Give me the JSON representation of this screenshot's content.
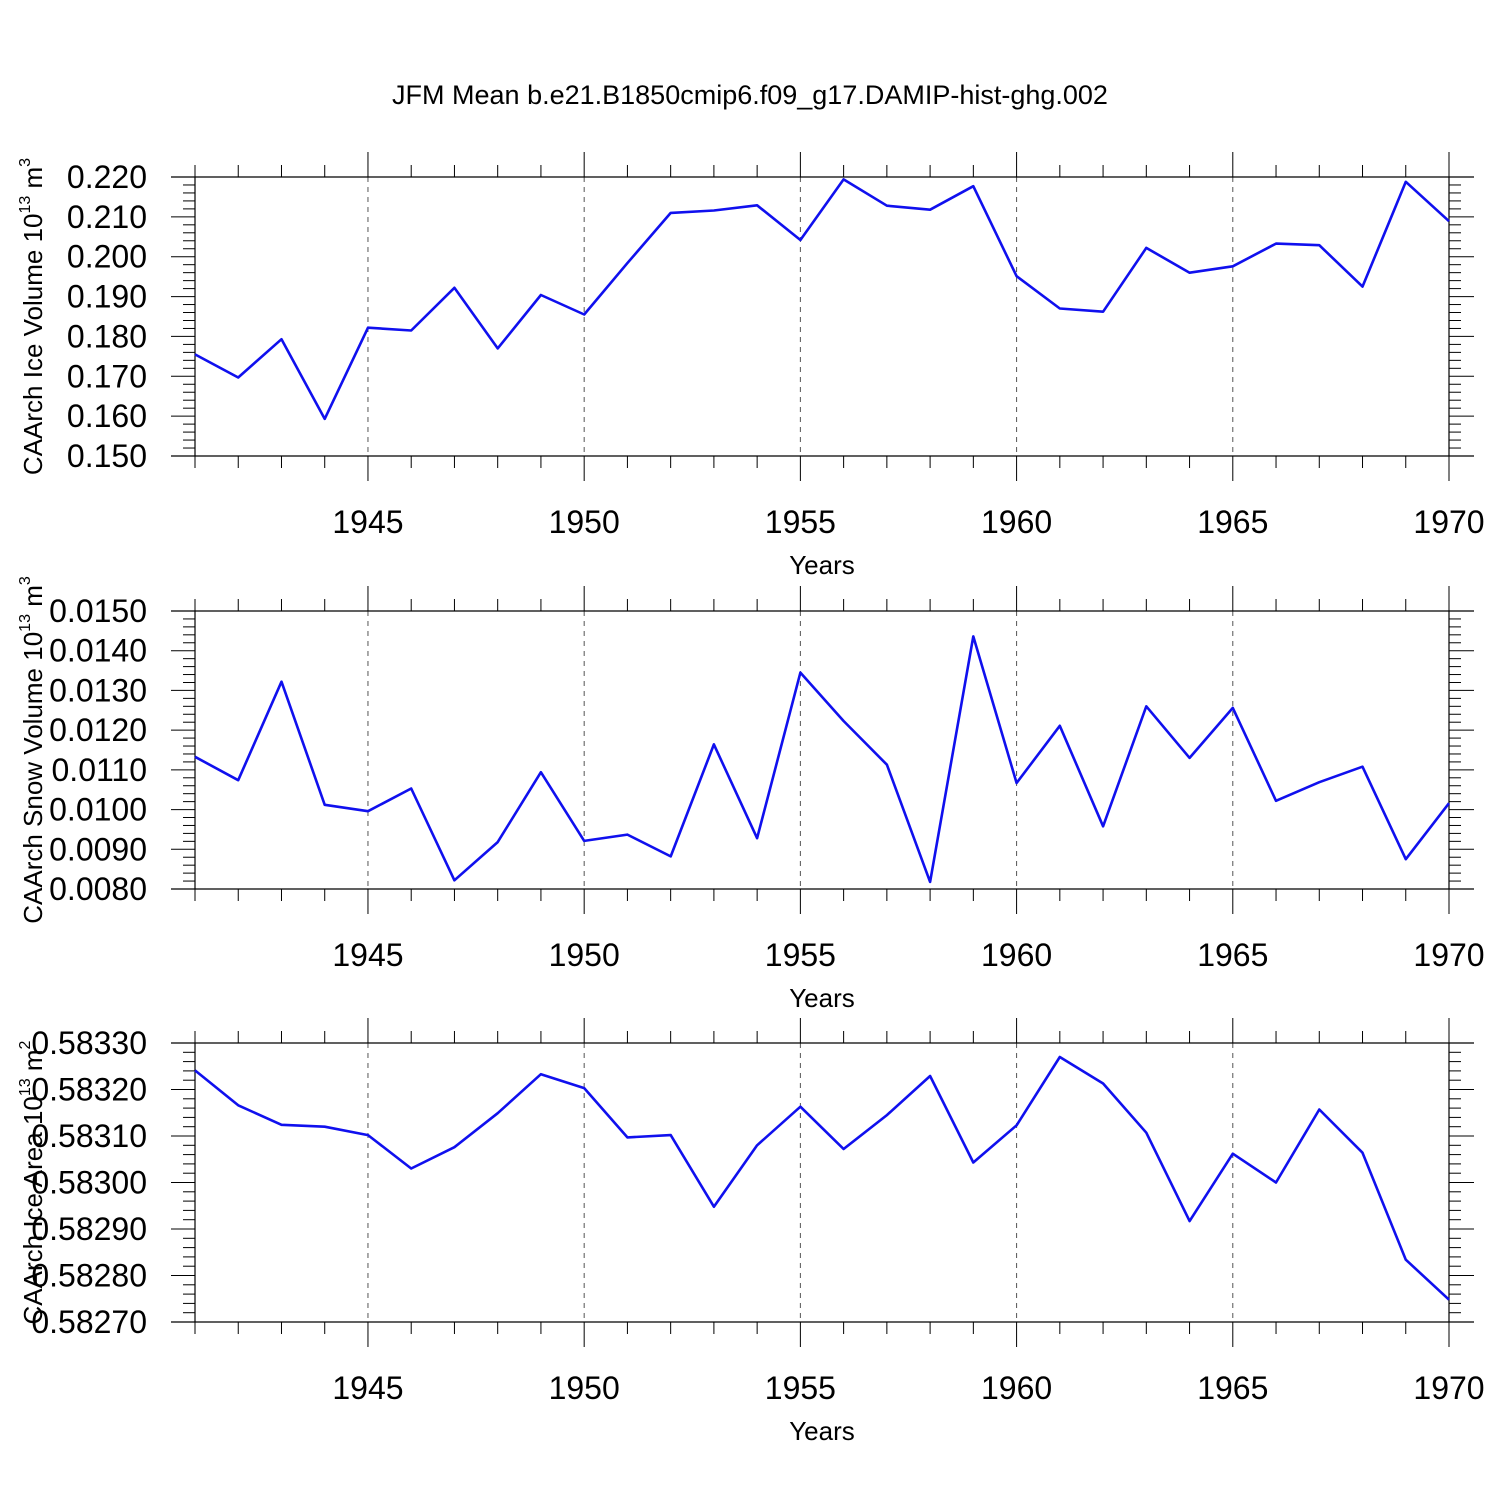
{
  "title": "JFM Mean b.e21.B1850cmip6.f09_g17.DAMIP-hist-ghg.002",
  "colors": {
    "line": "#1010ee",
    "axis": "#000000",
    "grid": "#555555"
  },
  "chart_data": [
    {
      "type": "line",
      "xlabel": "Years",
      "ylabel": "CAArch Ice Volume 10",
      "ylabel_exp": "13",
      "ylabel_unit": " m",
      "ylabel_unit_exp": "3",
      "xlim": [
        1941,
        1970
      ],
      "ylim": [
        0.15,
        0.22
      ],
      "x_ticks": [
        1945,
        1950,
        1955,
        1960,
        1965,
        1970
      ],
      "x_tick_labels": [
        "1945",
        "1950",
        "1955",
        "1960",
        "1965",
        "1970"
      ],
      "y_ticks": [
        0.15,
        0.16,
        0.17,
        0.18,
        0.19,
        0.2,
        0.21,
        0.22
      ],
      "y_tick_labels": [
        "0.150",
        "0.160",
        "0.170",
        "0.180",
        "0.190",
        "0.200",
        "0.210",
        "0.220"
      ],
      "grid": "vertical dashed at labeled years",
      "x": [
        1941,
        1942,
        1943,
        1944,
        1945,
        1946,
        1947,
        1948,
        1949,
        1950,
        1951,
        1952,
        1953,
        1954,
        1955,
        1956,
        1957,
        1958,
        1959,
        1960,
        1961,
        1962,
        1963,
        1964,
        1965,
        1966,
        1967,
        1968,
        1969,
        1970
      ],
      "series": [
        {
          "values": [
            0.1755,
            0.1697,
            0.1793,
            0.1593,
            0.1822,
            0.1815,
            0.1922,
            0.177,
            0.1904,
            0.1855,
            0.1984,
            0.211,
            0.2116,
            0.2129,
            0.2042,
            0.2194,
            0.2128,
            0.2118,
            0.2177,
            0.1951,
            0.187,
            0.1862,
            0.2022,
            0.196,
            0.1976,
            0.2033,
            0.2029,
            0.1925,
            0.2188,
            0.2089
          ]
        }
      ]
    },
    {
      "type": "line",
      "xlabel": "Years",
      "ylabel": "CAArch Snow Volume 10",
      "ylabel_exp": "13",
      "ylabel_unit": " m",
      "ylabel_unit_exp": "3",
      "xlim": [
        1941,
        1970
      ],
      "ylim": [
        0.008,
        0.015
      ],
      "x_ticks": [
        1945,
        1950,
        1955,
        1960,
        1965,
        1970
      ],
      "x_tick_labels": [
        "1945",
        "1950",
        "1955",
        "1960",
        "1965",
        "1970"
      ],
      "y_ticks": [
        0.008,
        0.009,
        0.01,
        0.011,
        0.012,
        0.013,
        0.014,
        0.015
      ],
      "y_tick_labels": [
        "0.0080",
        "0.0090",
        "0.0100",
        "0.0110",
        "0.0120",
        "0.0130",
        "0.0140",
        "0.0150"
      ],
      "grid": "vertical dashed at labeled years",
      "x": [
        1941,
        1942,
        1943,
        1944,
        1945,
        1946,
        1947,
        1948,
        1949,
        1950,
        1951,
        1952,
        1953,
        1954,
        1955,
        1956,
        1957,
        1958,
        1959,
        1960,
        1961,
        1962,
        1963,
        1964,
        1965,
        1966,
        1967,
        1968,
        1969,
        1970
      ],
      "series": [
        {
          "values": [
            0.01133,
            0.01074,
            0.01322,
            0.01012,
            0.00996,
            0.01053,
            0.00822,
            0.00918,
            0.01094,
            0.00921,
            0.00937,
            0.00882,
            0.01164,
            0.00928,
            0.01345,
            0.01223,
            0.01113,
            0.00818,
            0.01436,
            0.01067,
            0.01211,
            0.00958,
            0.0126,
            0.0113,
            0.01256,
            0.01022,
            0.01069,
            0.01108,
            0.00875,
            0.01016
          ]
        }
      ]
    },
    {
      "type": "line",
      "xlabel": "Years",
      "ylabel": "CAArch Ice Area 10",
      "ylabel_exp": "13",
      "ylabel_unit": " m",
      "ylabel_unit_exp": "2",
      "xlim": [
        1941,
        1970
      ],
      "ylim": [
        0.5827,
        0.5833
      ],
      "x_ticks": [
        1945,
        1950,
        1955,
        1960,
        1965,
        1970
      ],
      "x_tick_labels": [
        "1945",
        "1950",
        "1955",
        "1960",
        "1965",
        "1970"
      ],
      "y_ticks": [
        0.5827,
        0.5828,
        0.5829,
        0.583,
        0.5831,
        0.5832,
        0.5833
      ],
      "y_tick_labels": [
        "0.58270",
        "0.58280",
        "0.58290",
        "0.58300",
        "0.58310",
        "0.58320",
        "0.58330"
      ],
      "grid": "vertical dashed at labeled years",
      "x": [
        1941,
        1942,
        1943,
        1944,
        1945,
        1946,
        1947,
        1948,
        1949,
        1950,
        1951,
        1952,
        1953,
        1954,
        1955,
        1956,
        1957,
        1958,
        1959,
        1960,
        1961,
        1962,
        1963,
        1964,
        1965,
        1966,
        1967,
        1968,
        1969,
        1970
      ],
      "series": [
        {
          "values": [
            0.583241,
            0.583166,
            0.583124,
            0.58312,
            0.583102,
            0.58303,
            0.583076,
            0.583149,
            0.583233,
            0.583203,
            0.583097,
            0.583102,
            0.582948,
            0.58308,
            0.583163,
            0.583072,
            0.583145,
            0.583229,
            0.583043,
            0.583123,
            0.58327,
            0.583213,
            0.583107,
            0.582917,
            0.583062,
            0.583,
            0.583157,
            0.583064,
            0.582834,
            0.582748
          ]
        }
      ]
    }
  ]
}
